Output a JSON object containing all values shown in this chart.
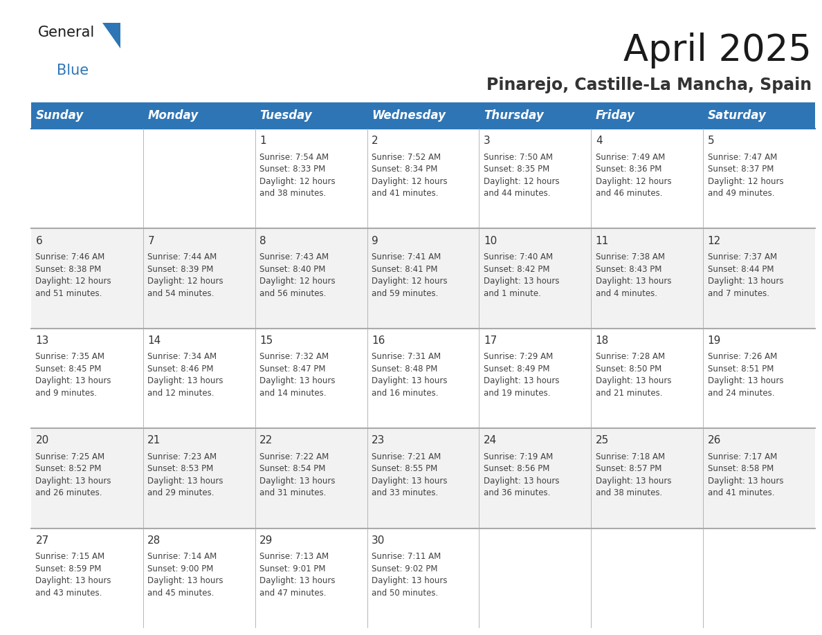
{
  "title": "April 2025",
  "subtitle": "Pinarejo, Castille-La Mancha, Spain",
  "header_bg_color": "#2E75B6",
  "header_text_color": "#FFFFFF",
  "bg_color": "#FFFFFF",
  "row_colors": [
    "#FFFFFF",
    "#F2F2F2"
  ],
  "cell_text_color": "#404040",
  "day_number_color": "#333333",
  "border_color": "#2E75B6",
  "divider_color": "#AAAAAA",
  "days_of_week": [
    "Sunday",
    "Monday",
    "Tuesday",
    "Wednesday",
    "Thursday",
    "Friday",
    "Saturday"
  ],
  "title_fontsize": 38,
  "subtitle_fontsize": 17,
  "header_fontsize": 12,
  "day_number_fontsize": 11,
  "cell_text_fontsize": 8.5,
  "logo_general_color": "#1a1a1a",
  "logo_blue_color": "#2E75B6",
  "logo_triangle_color": "#2E75B6",
  "weeks": [
    [
      {
        "day": "",
        "info": ""
      },
      {
        "day": "",
        "info": ""
      },
      {
        "day": "1",
        "info": "Sunrise: 7:54 AM\nSunset: 8:33 PM\nDaylight: 12 hours\nand 38 minutes."
      },
      {
        "day": "2",
        "info": "Sunrise: 7:52 AM\nSunset: 8:34 PM\nDaylight: 12 hours\nand 41 minutes."
      },
      {
        "day": "3",
        "info": "Sunrise: 7:50 AM\nSunset: 8:35 PM\nDaylight: 12 hours\nand 44 minutes."
      },
      {
        "day": "4",
        "info": "Sunrise: 7:49 AM\nSunset: 8:36 PM\nDaylight: 12 hours\nand 46 minutes."
      },
      {
        "day": "5",
        "info": "Sunrise: 7:47 AM\nSunset: 8:37 PM\nDaylight: 12 hours\nand 49 minutes."
      }
    ],
    [
      {
        "day": "6",
        "info": "Sunrise: 7:46 AM\nSunset: 8:38 PM\nDaylight: 12 hours\nand 51 minutes."
      },
      {
        "day": "7",
        "info": "Sunrise: 7:44 AM\nSunset: 8:39 PM\nDaylight: 12 hours\nand 54 minutes."
      },
      {
        "day": "8",
        "info": "Sunrise: 7:43 AM\nSunset: 8:40 PM\nDaylight: 12 hours\nand 56 minutes."
      },
      {
        "day": "9",
        "info": "Sunrise: 7:41 AM\nSunset: 8:41 PM\nDaylight: 12 hours\nand 59 minutes."
      },
      {
        "day": "10",
        "info": "Sunrise: 7:40 AM\nSunset: 8:42 PM\nDaylight: 13 hours\nand 1 minute."
      },
      {
        "day": "11",
        "info": "Sunrise: 7:38 AM\nSunset: 8:43 PM\nDaylight: 13 hours\nand 4 minutes."
      },
      {
        "day": "12",
        "info": "Sunrise: 7:37 AM\nSunset: 8:44 PM\nDaylight: 13 hours\nand 7 minutes."
      }
    ],
    [
      {
        "day": "13",
        "info": "Sunrise: 7:35 AM\nSunset: 8:45 PM\nDaylight: 13 hours\nand 9 minutes."
      },
      {
        "day": "14",
        "info": "Sunrise: 7:34 AM\nSunset: 8:46 PM\nDaylight: 13 hours\nand 12 minutes."
      },
      {
        "day": "15",
        "info": "Sunrise: 7:32 AM\nSunset: 8:47 PM\nDaylight: 13 hours\nand 14 minutes."
      },
      {
        "day": "16",
        "info": "Sunrise: 7:31 AM\nSunset: 8:48 PM\nDaylight: 13 hours\nand 16 minutes."
      },
      {
        "day": "17",
        "info": "Sunrise: 7:29 AM\nSunset: 8:49 PM\nDaylight: 13 hours\nand 19 minutes."
      },
      {
        "day": "18",
        "info": "Sunrise: 7:28 AM\nSunset: 8:50 PM\nDaylight: 13 hours\nand 21 minutes."
      },
      {
        "day": "19",
        "info": "Sunrise: 7:26 AM\nSunset: 8:51 PM\nDaylight: 13 hours\nand 24 minutes."
      }
    ],
    [
      {
        "day": "20",
        "info": "Sunrise: 7:25 AM\nSunset: 8:52 PM\nDaylight: 13 hours\nand 26 minutes."
      },
      {
        "day": "21",
        "info": "Sunrise: 7:23 AM\nSunset: 8:53 PM\nDaylight: 13 hours\nand 29 minutes."
      },
      {
        "day": "22",
        "info": "Sunrise: 7:22 AM\nSunset: 8:54 PM\nDaylight: 13 hours\nand 31 minutes."
      },
      {
        "day": "23",
        "info": "Sunrise: 7:21 AM\nSunset: 8:55 PM\nDaylight: 13 hours\nand 33 minutes."
      },
      {
        "day": "24",
        "info": "Sunrise: 7:19 AM\nSunset: 8:56 PM\nDaylight: 13 hours\nand 36 minutes."
      },
      {
        "day": "25",
        "info": "Sunrise: 7:18 AM\nSunset: 8:57 PM\nDaylight: 13 hours\nand 38 minutes."
      },
      {
        "day": "26",
        "info": "Sunrise: 7:17 AM\nSunset: 8:58 PM\nDaylight: 13 hours\nand 41 minutes."
      }
    ],
    [
      {
        "day": "27",
        "info": "Sunrise: 7:15 AM\nSunset: 8:59 PM\nDaylight: 13 hours\nand 43 minutes."
      },
      {
        "day": "28",
        "info": "Sunrise: 7:14 AM\nSunset: 9:00 PM\nDaylight: 13 hours\nand 45 minutes."
      },
      {
        "day": "29",
        "info": "Sunrise: 7:13 AM\nSunset: 9:01 PM\nDaylight: 13 hours\nand 47 minutes."
      },
      {
        "day": "30",
        "info": "Sunrise: 7:11 AM\nSunset: 9:02 PM\nDaylight: 13 hours\nand 50 minutes."
      },
      {
        "day": "",
        "info": ""
      },
      {
        "day": "",
        "info": ""
      },
      {
        "day": "",
        "info": ""
      }
    ]
  ]
}
